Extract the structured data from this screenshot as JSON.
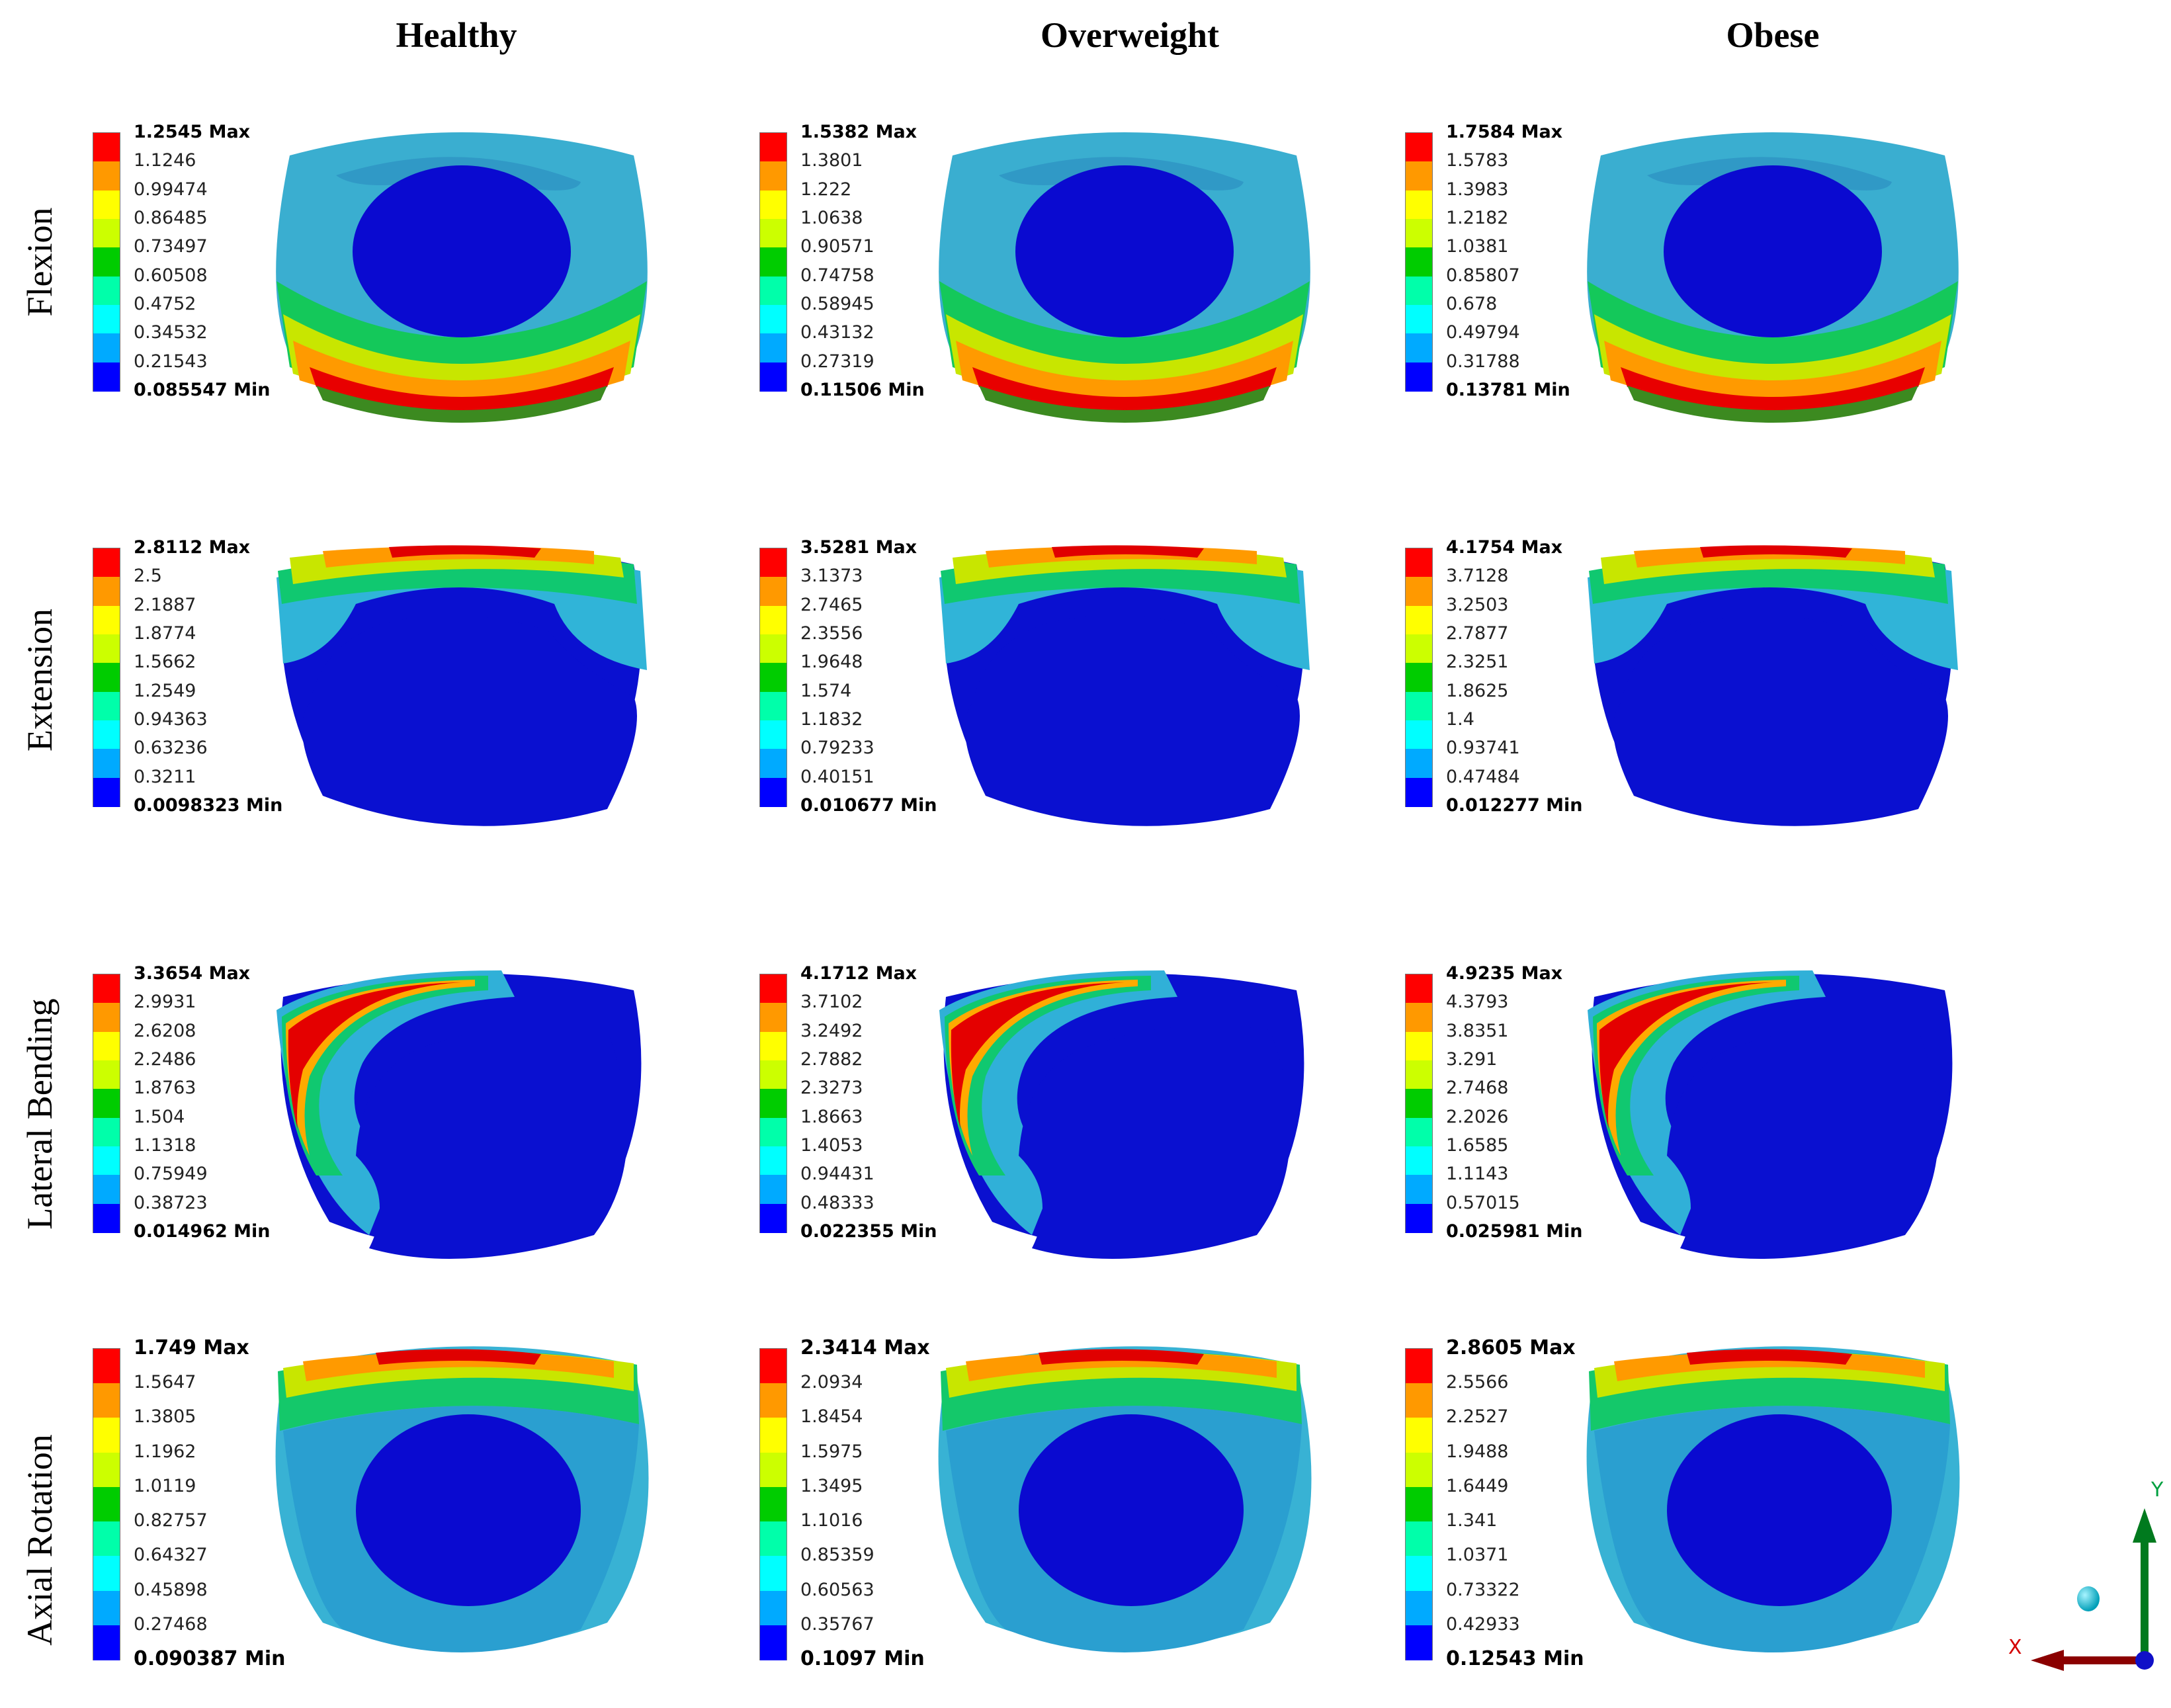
{
  "columns": [
    {
      "label": "Healthy"
    },
    {
      "label": "Overweight"
    },
    {
      "label": "Obese"
    }
  ],
  "rows": [
    {
      "label": "Flexion"
    },
    {
      "label": "Extension"
    },
    {
      "label": "Lateral Bending"
    },
    {
      "label": "Axial Rotation"
    }
  ],
  "legend_colors": [
    "#ff0000",
    "#ff9900",
    "#ffff00",
    "#ccff00",
    "#00cc00",
    "#00ffaa",
    "#00ffff",
    "#00aaff",
    "#0000ff"
  ],
  "panels": [
    [
      {
        "max": "1.2545 Max",
        "levels": [
          "1.1246",
          "0.99474",
          "0.86485",
          "0.73497",
          "0.60508",
          "0.4752",
          "0.34532",
          "0.21543"
        ],
        "min": "0.085547 Min"
      },
      {
        "max": "1.5382 Max",
        "levels": [
          "1.3801",
          "1.222",
          "1.0638",
          "0.90571",
          "0.74758",
          "0.58945",
          "0.43132",
          "0.27319"
        ],
        "min": "0.11506 Min"
      },
      {
        "max": "1.7584 Max",
        "levels": [
          "1.5783",
          "1.3983",
          "1.2182",
          "1.0381",
          "0.85807",
          "0.678",
          "0.49794",
          "0.31788"
        ],
        "min": "0.13781 Min"
      }
    ],
    [
      {
        "max": "2.8112 Max",
        "levels": [
          "2.5",
          "2.1887",
          "1.8774",
          "1.5662",
          "1.2549",
          "0.94363",
          "0.63236",
          "0.3211"
        ],
        "min": "0.0098323 Min"
      },
      {
        "max": "3.5281 Max",
        "levels": [
          "3.1373",
          "2.7465",
          "2.3556",
          "1.9648",
          "1.574",
          "1.1832",
          "0.79233",
          "0.40151"
        ],
        "min": "0.010677 Min"
      },
      {
        "max": "4.1754 Max",
        "levels": [
          "3.7128",
          "3.2503",
          "2.7877",
          "2.3251",
          "1.8625",
          "1.4",
          "0.93741",
          "0.47484"
        ],
        "min": "0.012277 Min"
      }
    ],
    [
      {
        "max": "3.3654 Max",
        "levels": [
          "2.9931",
          "2.6208",
          "2.2486",
          "1.8763",
          "1.504",
          "1.1318",
          "0.75949",
          "0.38723"
        ],
        "min": "0.014962 Min"
      },
      {
        "max": "4.1712 Max",
        "levels": [
          "3.7102",
          "3.2492",
          "2.7882",
          "2.3273",
          "1.8663",
          "1.4053",
          "0.94431",
          "0.48333"
        ],
        "min": "0.022355 Min"
      },
      {
        "max": "4.9235 Max",
        "levels": [
          "4.3793",
          "3.8351",
          "3.291",
          "2.7468",
          "2.2026",
          "1.6585",
          "1.1143",
          "0.57015"
        ],
        "min": "0.025981 Min"
      }
    ],
    [
      {
        "max": "1.749 Max",
        "levels": [
          "1.5647",
          "1.3805",
          "1.1962",
          "1.0119",
          "0.82757",
          "0.64327",
          "0.45898",
          "0.27468"
        ],
        "min": "0.090387 Min"
      },
      {
        "max": "2.3414 Max",
        "levels": [
          "2.0934",
          "1.8454",
          "1.5975",
          "1.3495",
          "1.1016",
          "0.85359",
          "0.60563",
          "0.35767"
        ],
        "min": "0.1097 Min"
      },
      {
        "max": "2.8605 Max",
        "levels": [
          "2.5566",
          "2.2527",
          "1.9488",
          "1.6449",
          "1.341",
          "1.0371",
          "0.73322",
          "0.42933"
        ],
        "min": "0.12543 Min"
      }
    ]
  ],
  "triad": {
    "x_label": "X",
    "y_label": "Y"
  }
}
